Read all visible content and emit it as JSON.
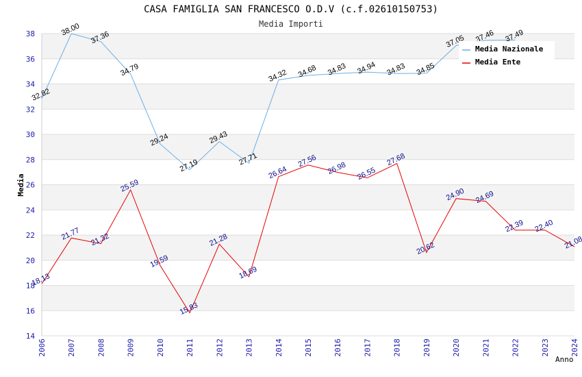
{
  "chart_data": {
    "type": "line",
    "title": "CASA FAMIGLIA SAN FRANCESCO O.D.V (c.f.02610150753)",
    "subtitle": "Media Importi",
    "xlabel": "Anno",
    "ylabel": "Media",
    "ylim": [
      14,
      38
    ],
    "yticks": [
      14,
      16,
      18,
      20,
      22,
      24,
      26,
      28,
      30,
      32,
      34,
      36,
      38
    ],
    "grid": true,
    "legend_position": "top-right",
    "categories": [
      "2006",
      "2007",
      "2008",
      "2009",
      "2010",
      "2011",
      "2012",
      "2013",
      "2014",
      "2015",
      "2016",
      "2017",
      "2018",
      "2019",
      "2020",
      "2021",
      "2022",
      "2023",
      "2024"
    ],
    "series": [
      {
        "name": "Media Nazionale",
        "color": "#6aaee6",
        "values": [
          32.82,
          38.0,
          37.36,
          34.79,
          29.24,
          27.19,
          29.43,
          27.71,
          34.32,
          34.68,
          34.83,
          34.94,
          34.83,
          34.85,
          37.05,
          37.46,
          37.49,
          null,
          null
        ],
        "labels": [
          "32.82",
          "38.00",
          "37.36",
          "34.79",
          "29.24",
          "27.19",
          "29.43",
          "27.71",
          "34.32",
          "34.68",
          "34.83",
          "34.94",
          "34.83",
          "34.85",
          "37.05",
          "37.46",
          "37.49",
          null,
          null
        ]
      },
      {
        "name": "Media Ente",
        "color": "#e60000",
        "values": [
          18.13,
          21.77,
          21.32,
          25.59,
          19.59,
          15.83,
          21.28,
          18.69,
          26.64,
          27.56,
          26.98,
          26.55,
          27.68,
          20.62,
          24.9,
          24.69,
          22.39,
          22.4,
          21.08
        ],
        "labels": [
          "18.13",
          "21.77",
          "21.32",
          "25.59",
          "19.59",
          "15.83",
          "21.28",
          "18.69",
          "26.64",
          "27.56",
          "26.98",
          "26.55",
          "27.68",
          "20.62",
          "24.90",
          "24.69",
          "22.39",
          "22.40",
          "21.08"
        ]
      }
    ]
  }
}
